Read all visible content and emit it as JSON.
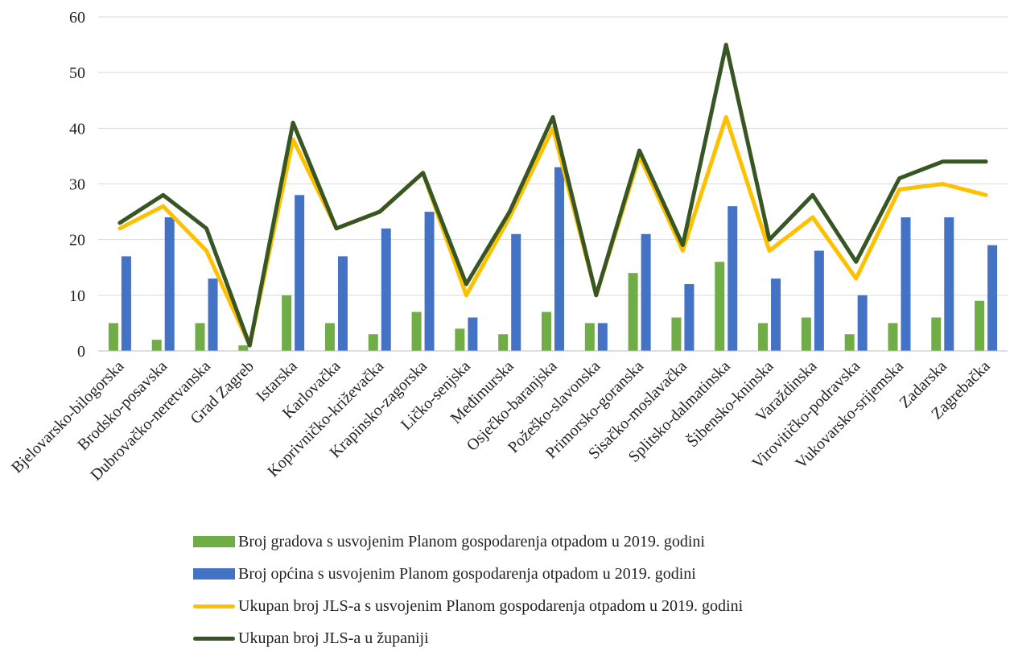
{
  "chart_data": {
    "type": "bar",
    "categories": [
      "Bjelovarsko-bilogorska",
      "Brodsko-posavska",
      "Dubrovačko-neretvanska",
      "Grad Zagreb",
      "Istarska",
      "Karlovačka",
      "Koprivničko-križevačka",
      "Krapinsko-zagorska",
      "Ličko-senjska",
      "Međimurska",
      "Osječko-baranjska",
      "Požeško-slavonska",
      "Primorsko-goranska",
      "Sisačko-moslavačka",
      "Splitsko-dalmatinska",
      "Šibensko-kninska",
      "Varaždinska",
      "Virovitičko-podravska",
      "Vukovarsko-srijemska",
      "Zadarska",
      "Zagrebačka"
    ],
    "series": [
      {
        "name": "Broj gradova s usvojenim Planom gospodarenja otpadom u 2019. godini",
        "type": "bar",
        "color": "#70ad47",
        "values": [
          5,
          2,
          5,
          1,
          10,
          5,
          3,
          7,
          4,
          3,
          7,
          5,
          14,
          6,
          16,
          5,
          6,
          3,
          5,
          6,
          9
        ]
      },
      {
        "name": "Broj općina s usvojenim Planom gospodarenja otpadom u 2019. godini",
        "type": "bar",
        "color": "#4472c4",
        "values": [
          17,
          24,
          13,
          0,
          28,
          17,
          22,
          25,
          6,
          21,
          33,
          5,
          21,
          12,
          26,
          13,
          18,
          10,
          24,
          24,
          19
        ]
      },
      {
        "name": "Ukupan broj JLS-a s usvojenim Planom gospodarenja otpadom u 2019. godini",
        "type": "line",
        "color": "#ffc000",
        "values": [
          22,
          26,
          18,
          1,
          38,
          22,
          25,
          32,
          10,
          24,
          40,
          10,
          35,
          18,
          42,
          18,
          24,
          13,
          29,
          30,
          28
        ]
      },
      {
        "name": "Ukupan broj JLS-a u županiji",
        "type": "line",
        "color": "#375623",
        "values": [
          23,
          28,
          22,
          1,
          41,
          22,
          25,
          32,
          12,
          25,
          42,
          10,
          36,
          19,
          55,
          20,
          28,
          16,
          31,
          34,
          34
        ]
      }
    ],
    "ylim": [
      0,
      60
    ],
    "yticks": [
      "0",
      "10",
      "20",
      "30",
      "40",
      "50",
      "60"
    ],
    "grid": true,
    "legend_position": "bottom"
  }
}
